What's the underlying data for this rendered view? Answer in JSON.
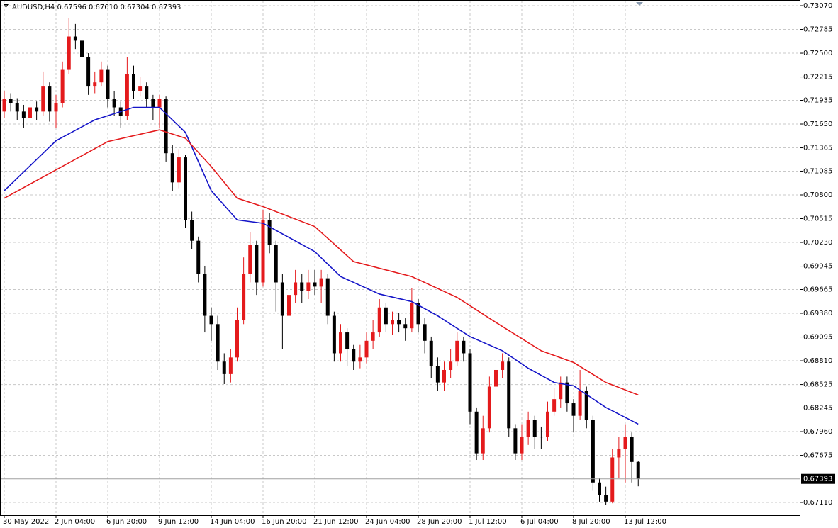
{
  "chart_data": {
    "type": "candlestick",
    "header": "AUDUSD,H4  0.67596 0.67610 0.67304 0.67393",
    "open": [
      0.718,
      0.7195,
      0.719,
      0.718,
      0.7172,
      0.7185,
      0.718,
      0.721,
      0.718,
      0.719,
      0.723,
      0.727,
      0.7265,
      0.7245,
      0.721,
      0.7215,
      0.723,
      0.7195,
      0.7185,
      0.7175,
      0.7225,
      0.7205,
      0.721,
      0.7195,
      0.7185,
      0.7195,
      0.713,
      0.7095,
      0.7125,
      0.705,
      0.7025,
      0.6985,
      0.6935,
      0.6925,
      0.688,
      0.6865,
      0.6885,
      0.693,
      0.6985,
      0.702,
      0.6975,
      0.705,
      0.702,
      0.6975,
      0.6935,
      0.696,
      0.6975,
      0.6965,
      0.6975,
      0.697,
      0.698,
      0.6935,
      0.689,
      0.6915,
      0.6895,
      0.688,
      0.6885,
      0.6905,
      0.6915,
      0.6945,
      0.6925,
      0.693,
      0.6925,
      0.692,
      0.695,
      0.6925,
      0.6905,
      0.6875,
      0.6855,
      0.687,
      0.688,
      0.6905,
      0.689,
      0.682,
      0.677,
      0.68,
      0.685,
      0.687,
      0.688,
      0.68,
      0.677,
      0.679,
      0.681,
      0.679,
      0.679,
      0.682,
      0.6835,
      0.6855,
      0.683,
      0.6815,
      0.6845,
      0.681,
      0.6735,
      0.672,
      0.6712,
      0.6765,
      0.6775,
      0.679,
      0.67596
    ],
    "high": [
      0.7205,
      0.7202,
      0.7196,
      0.7188,
      0.7193,
      0.7192,
      0.7228,
      0.7215,
      0.72,
      0.724,
      0.7292,
      0.7285,
      0.727,
      0.725,
      0.7228,
      0.724,
      0.7235,
      0.7205,
      0.7192,
      0.7245,
      0.7235,
      0.7222,
      0.7215,
      0.72,
      0.72,
      0.7198,
      0.714,
      0.7135,
      0.7128,
      0.706,
      0.703,
      0.6995,
      0.6945,
      0.6935,
      0.689,
      0.6895,
      0.6945,
      0.7005,
      0.7035,
      0.7025,
      0.7062,
      0.7058,
      0.7025,
      0.6985,
      0.697,
      0.699,
      0.6985,
      0.699,
      0.699,
      0.699,
      0.6985,
      0.694,
      0.6925,
      0.692,
      0.69,
      0.69,
      0.6915,
      0.693,
      0.6955,
      0.695,
      0.694,
      0.6938,
      0.6932,
      0.6968,
      0.6955,
      0.6932,
      0.691,
      0.6885,
      0.688,
      0.6895,
      0.6915,
      0.691,
      0.6895,
      0.6825,
      0.6815,
      0.6862,
      0.6885,
      0.689,
      0.6885,
      0.6805,
      0.6805,
      0.682,
      0.6815,
      0.6802,
      0.6832,
      0.6848,
      0.6862,
      0.6862,
      0.6835,
      0.687,
      0.685,
      0.6815,
      0.674,
      0.673,
      0.6775,
      0.679,
      0.6805,
      0.6795,
      0.6761
    ],
    "low": [
      0.7172,
      0.718,
      0.717,
      0.716,
      0.7165,
      0.717,
      0.7175,
      0.7168,
      0.716,
      0.7185,
      0.7225,
      0.7255,
      0.7235,
      0.72,
      0.7202,
      0.721,
      0.7185,
      0.7175,
      0.716,
      0.717,
      0.7195,
      0.7198,
      0.7185,
      0.717,
      0.716,
      0.712,
      0.7085,
      0.7088,
      0.704,
      0.7015,
      0.6975,
      0.6915,
      0.6905,
      0.687,
      0.6853,
      0.6855,
      0.688,
      0.6925,
      0.6975,
      0.696,
      0.697,
      0.701,
      0.694,
      0.6895,
      0.6925,
      0.695,
      0.695,
      0.6955,
      0.696,
      0.695,
      0.6925,
      0.688,
      0.688,
      0.6875,
      0.687,
      0.6872,
      0.6878,
      0.6895,
      0.691,
      0.6915,
      0.6912,
      0.6915,
      0.6905,
      0.6915,
      0.6915,
      0.689,
      0.686,
      0.6845,
      0.6845,
      0.686,
      0.6875,
      0.688,
      0.6805,
      0.6762,
      0.6762,
      0.6795,
      0.684,
      0.686,
      0.679,
      0.6762,
      0.6762,
      0.678,
      0.6775,
      0.6775,
      0.6785,
      0.6815,
      0.6825,
      0.682,
      0.6795,
      0.681,
      0.68,
      0.6725,
      0.6712,
      0.6708,
      0.671,
      0.674,
      0.6735,
      0.6735,
      0.67304
    ],
    "close": [
      0.7195,
      0.719,
      0.718,
      0.7172,
      0.7185,
      0.718,
      0.721,
      0.718,
      0.719,
      0.723,
      0.727,
      0.7265,
      0.7245,
      0.721,
      0.7215,
      0.723,
      0.7195,
      0.7185,
      0.7175,
      0.7225,
      0.7205,
      0.721,
      0.7195,
      0.7185,
      0.7195,
      0.713,
      0.7095,
      0.7125,
      0.705,
      0.7025,
      0.6985,
      0.6935,
      0.6925,
      0.688,
      0.6865,
      0.6885,
      0.693,
      0.6985,
      0.702,
      0.6975,
      0.705,
      0.702,
      0.6975,
      0.6935,
      0.696,
      0.6975,
      0.6965,
      0.6975,
      0.697,
      0.698,
      0.6935,
      0.689,
      0.6915,
      0.6895,
      0.688,
      0.6885,
      0.6905,
      0.6915,
      0.6945,
      0.6925,
      0.693,
      0.6925,
      0.692,
      0.695,
      0.6925,
      0.6905,
      0.6875,
      0.6855,
      0.687,
      0.688,
      0.6905,
      0.689,
      0.682,
      0.677,
      0.68,
      0.685,
      0.687,
      0.688,
      0.68,
      0.677,
      0.679,
      0.681,
      0.679,
      0.679,
      0.682,
      0.6835,
      0.6855,
      0.683,
      0.6815,
      0.6845,
      0.681,
      0.6735,
      0.672,
      0.6712,
      0.6765,
      0.6775,
      0.679,
      0.67596,
      0.67393
    ],
    "up_color": "#e41a1c",
    "down_color": "#000000",
    "lines": [
      {
        "color": "#1515c8",
        "x": [
          0,
          8,
          14,
          20,
          24,
          28,
          32,
          36,
          40,
          48,
          52,
          58,
          63,
          67,
          72,
          77,
          81,
          85,
          88,
          93,
          98
        ],
        "values": [
          0.7085,
          0.7145,
          0.717,
          0.7185,
          0.7185,
          0.7155,
          0.7085,
          0.705,
          0.7046,
          0.7012,
          0.6982,
          0.6961,
          0.6952,
          0.6935,
          0.691,
          0.6893,
          0.6872,
          0.6855,
          0.6851,
          0.6825,
          0.6805
        ]
      },
      {
        "color": "#e41a1c",
        "x": [
          0,
          8,
          16,
          24,
          28,
          32,
          36,
          40,
          48,
          54,
          63,
          70,
          76,
          83,
          88,
          93,
          98
        ],
        "values": [
          0.7076,
          0.711,
          0.7144,
          0.7158,
          0.7148,
          0.7114,
          0.7076,
          0.7066,
          0.7042,
          0.7,
          0.6982,
          0.6957,
          0.6927,
          0.6893,
          0.6879,
          0.6855,
          0.684
        ]
      }
    ],
    "current_price": 0.67393,
    "ylim": [
      0.66957,
      0.73138
    ],
    "yticks": [
      {
        "value": 0.7307,
        "label": "0.73070"
      },
      {
        "value": 0.72785,
        "label": "0.72785"
      },
      {
        "value": 0.725,
        "label": "0.72500"
      },
      {
        "value": 0.72215,
        "label": "0.72215"
      },
      {
        "value": 0.71935,
        "label": "0.71935"
      },
      {
        "value": 0.7165,
        "label": "0.71650"
      },
      {
        "value": 0.71365,
        "label": "0.71365"
      },
      {
        "value": 0.71085,
        "label": "0.71085"
      },
      {
        "value": 0.708,
        "label": "0.70800"
      },
      {
        "value": 0.70515,
        "label": "0.70515"
      },
      {
        "value": 0.7023,
        "label": "0.70230"
      },
      {
        "value": 0.69945,
        "label": "0.69945"
      },
      {
        "value": 0.69665,
        "label": "0.69665"
      },
      {
        "value": 0.6938,
        "label": "0.69380"
      },
      {
        "value": 0.69095,
        "label": "0.69095"
      },
      {
        "value": 0.6881,
        "label": "0.68810"
      },
      {
        "value": 0.68525,
        "label": "0.68525"
      },
      {
        "value": 0.68245,
        "label": "0.68245"
      },
      {
        "value": 0.6796,
        "label": "0.67960"
      },
      {
        "value": 0.67675,
        "label": "0.67675"
      },
      {
        "value": 0.6711,
        "label": "0.67110"
      }
    ],
    "xticks": [
      {
        "value": 0,
        "label": "30 May 2022"
      },
      {
        "value": 8,
        "label": "2 Jun 04:00"
      },
      {
        "value": 16,
        "label": "6 Jun 20:00"
      },
      {
        "value": 24,
        "label": "9 Jun 12:00"
      },
      {
        "value": 32,
        "label": "14 Jun 04:00"
      },
      {
        "value": 40,
        "label": "16 Jun 20:00"
      },
      {
        "value": 48,
        "label": "21 Jun 12:00"
      },
      {
        "value": 56,
        "label": "24 Jun 04:00"
      },
      {
        "value": 64,
        "label": "28 Jun 20:00"
      },
      {
        "value": 72,
        "label": "1 Jul 12:00"
      },
      {
        "value": 80,
        "label": "6 Jul 04:00"
      },
      {
        "value": 88,
        "label": "8 Jul 20:00"
      },
      {
        "value": 96,
        "label": "13 Jul 12:00"
      }
    ],
    "grid": true
  }
}
